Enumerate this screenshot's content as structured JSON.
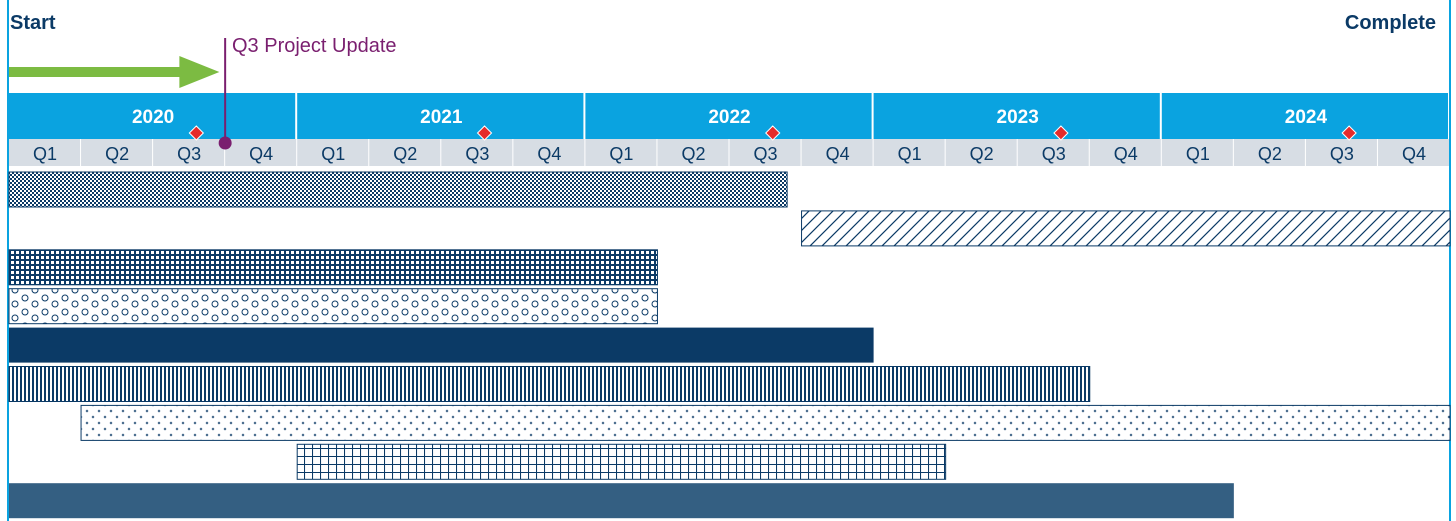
{
  "labels": {
    "start": "Start",
    "complete": "Complete",
    "marker": "Q3 Project Update"
  },
  "colors": {
    "year_band": "#0aa3e0",
    "quarter_band": "#d7dde4",
    "navy": "#0b3a66",
    "slate": "#345f82",
    "green_arrow": "#7cbb42",
    "marker": "#7a1f6f",
    "diamond": "#e52b2b",
    "frame": "#0aa3e0"
  },
  "icons": {
    "arrow": "progress-arrow-icon",
    "diamond": "diamond-milestone-icon"
  },
  "chart_data": {
    "type": "gantt",
    "years": [
      "2020",
      "2021",
      "2022",
      "2023",
      "2024"
    ],
    "quarters": [
      "Q1",
      "Q2",
      "Q3",
      "Q4"
    ],
    "start_year": 2020,
    "end_year": 2025,
    "milestones": [
      {
        "label": "2020 Q3",
        "at": 2020.65
      },
      {
        "label": "2021 Q3",
        "at": 2021.65
      },
      {
        "label": "2022 Q3",
        "at": 2022.65
      },
      {
        "label": "2023 Q3",
        "at": 2023.65
      },
      {
        "label": "2024 Q3",
        "at": 2024.65
      }
    ],
    "project_update": {
      "label": "Q3 Project Update",
      "at": 2020.75
    },
    "progress": {
      "from": 2020.0,
      "to": 2020.73
    },
    "tasks": [
      {
        "start": 2020.0,
        "end": 2022.7,
        "pattern": "checker"
      },
      {
        "start": 2022.75,
        "end": 2025.0,
        "pattern": "diagonal"
      },
      {
        "start": 2020.0,
        "end": 2022.25,
        "pattern": "grid"
      },
      {
        "start": 2020.0,
        "end": 2022.25,
        "pattern": "circles"
      },
      {
        "start": 2020.0,
        "end": 2023.0,
        "pattern": "solid-navy"
      },
      {
        "start": 2020.0,
        "end": 2023.75,
        "pattern": "vertical"
      },
      {
        "start": 2020.25,
        "end": 2025.0,
        "pattern": "plus"
      },
      {
        "start": 2021.0,
        "end": 2023.25,
        "pattern": "squares"
      },
      {
        "start": 2020.0,
        "end": 2024.25,
        "pattern": "solid-slate"
      }
    ]
  }
}
